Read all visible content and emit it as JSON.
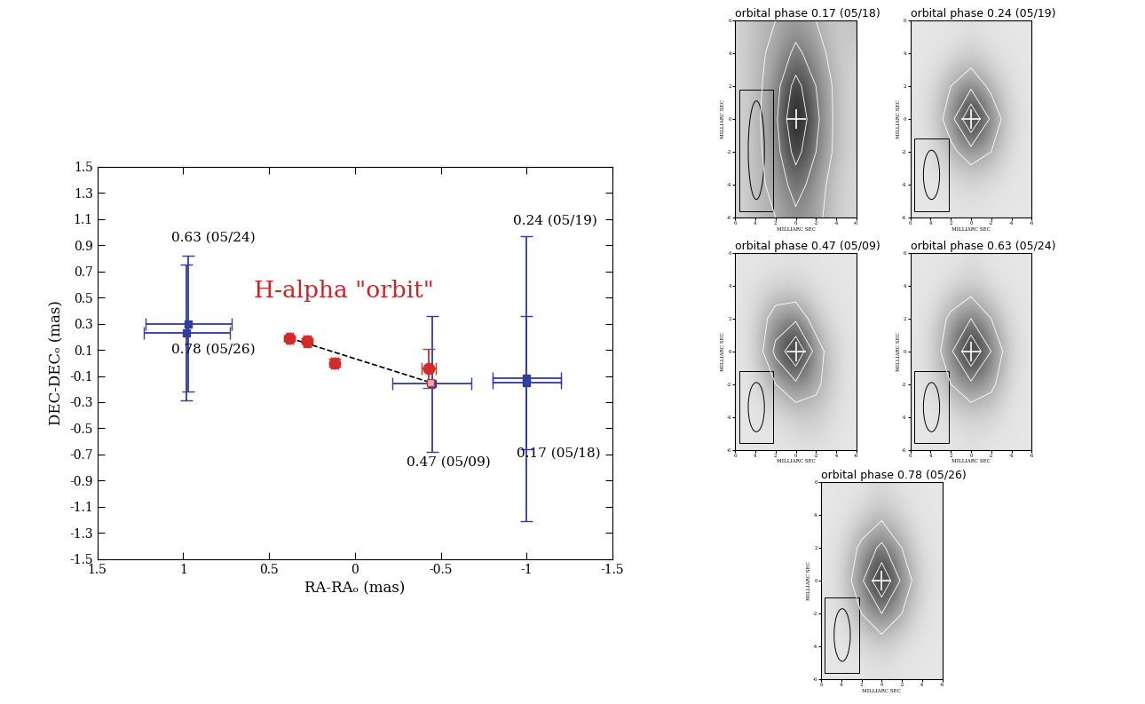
{
  "chart_data": [
    {
      "type": "scatter",
      "xlabel": "RA-RAₒ (mas)",
      "ylabel": "DEC-DECₒ (mas)",
      "xlim": [
        1.5,
        -1.5
      ],
      "ylim": [
        -1.5,
        1.5
      ],
      "xticks": [
        1.5,
        1,
        0.5,
        0,
        -0.5,
        -1,
        -1.5
      ],
      "yticks": [
        -1.5,
        -1.3,
        -1.1,
        -0.9,
        -0.7,
        -0.5,
        -0.3,
        -0.1,
        0.1,
        0.3,
        0.5,
        0.7,
        0.9,
        1.1,
        1.3,
        1.5
      ],
      "series": [
        {
          "type": "scatter",
          "color": "#2f3d9c",
          "marker": "square",
          "line_style": "none",
          "x": [
            0.97,
            0.98,
            -0.45,
            -1.0,
            -1.0
          ],
          "y": [
            0.3,
            0.23,
            -0.16,
            -0.12,
            -0.15
          ],
          "xerr": [
            0.25,
            0.25,
            0.23,
            0.2,
            0.2
          ],
          "yerr": [
            0.52,
            0.52,
            0.52,
            1.09,
            0.51
          ]
        },
        {
          "type": "line",
          "color": "#000000",
          "marker": "none",
          "line_style": "dashed",
          "x": [
            0.38,
            -0.44
          ],
          "y": [
            0.19,
            -0.15
          ]
        },
        {
          "type": "scatter",
          "color": "#d42a2a",
          "marker": "square",
          "line_style": "none",
          "x": [
            0.38,
            0.28,
            0.12,
            -0.44
          ],
          "y": [
            0.19,
            0.15,
            -0.01,
            -0.15
          ]
        },
        {
          "type": "scatter",
          "color": "#d42a2a",
          "marker": "circle",
          "line_style": "none",
          "x": [
            0.38,
            0.28,
            0.12,
            -0.43
          ],
          "y": [
            0.19,
            0.17,
            0.0,
            -0.04
          ],
          "xerr": [
            0.02,
            0.02,
            0.02,
            0.04
          ],
          "yerr": [
            0.02,
            0.02,
            0.03,
            0.15
          ]
        }
      ],
      "annotations": [
        {
          "text": "0.63 (05/24)",
          "x": 1.07,
          "y": 0.96,
          "color": "#000000"
        },
        {
          "text": "0.78 (05/26)",
          "x": 1.07,
          "y": 0.1,
          "color": "#000000"
        },
        {
          "text": "0.47 (05/09)",
          "x": -0.3,
          "y": -0.76,
          "color": "#000000"
        },
        {
          "text": "0.24 (05/19)",
          "x": -0.92,
          "y": 1.09,
          "color": "#000000"
        },
        {
          "text": "0.17 (05/18)",
          "x": -0.94,
          "y": -0.69,
          "color": "#000000"
        },
        {
          "text": "H-alpha \"orbit\"",
          "x": 0.59,
          "y": 0.55,
          "color": "#c8262a"
        }
      ]
    },
    {
      "type": "image",
      "title": "orbital phase 0.17 (05/18)",
      "xlabel": "MILLIARC SEC",
      "ylabel": "MILLIARC SEC",
      "xlim": [
        6,
        -6
      ],
      "ylim": [
        -6,
        6
      ],
      "xticks": [
        6,
        4,
        2,
        0,
        -2,
        -4,
        -6
      ],
      "yticks": [
        -6,
        -4,
        -2,
        0,
        2,
        4,
        6
      ],
      "clim": [
        0,
        1
      ],
      "contour_levels": [
        0.3,
        0.5,
        0.75
      ],
      "cell_x": [
        6,
        4,
        2,
        0,
        -2,
        -4,
        -6
      ],
      "cell_y": [
        -6,
        -4,
        -2,
        0,
        2,
        4,
        6
      ],
      "cells": [
        [
          0.15,
          0.25,
          0.3,
          0.45,
          0.35,
          0.2,
          0.15
        ],
        [
          0.15,
          0.25,
          0.35,
          0.6,
          0.4,
          0.2,
          0.15
        ],
        [
          0.15,
          0.25,
          0.4,
          0.85,
          0.5,
          0.25,
          0.15
        ],
        [
          0.15,
          0.25,
          0.45,
          1.0,
          0.55,
          0.25,
          0.15
        ],
        [
          0.15,
          0.25,
          0.4,
          0.85,
          0.5,
          0.25,
          0.15
        ],
        [
          0.15,
          0.25,
          0.35,
          0.55,
          0.4,
          0.2,
          0.2
        ],
        [
          0.15,
          0.25,
          0.3,
          0.4,
          0.3,
          0.2,
          0.25
        ]
      ],
      "beam": {
        "width": 1.6,
        "height": 6.0
      },
      "cross": [
        0,
        0
      ]
    },
    {
      "type": "image",
      "title": "orbital phase 0.24 (05/19)",
      "xlabel": "MILLIARC SEC",
      "ylabel": "MILLIARC SEC",
      "xlim": [
        6,
        -6
      ],
      "ylim": [
        -6,
        6
      ],
      "xticks": [
        6,
        4,
        2,
        0,
        -2,
        -4,
        -6
      ],
      "yticks": [
        -6,
        -4,
        -2,
        0,
        2,
        4,
        6
      ],
      "clim": [
        0,
        1
      ],
      "contour_levels": [
        0.3,
        0.5,
        0.75
      ],
      "cell_x": [
        6,
        4,
        2,
        0,
        -2,
        -4,
        -6
      ],
      "cell_y": [
        -6,
        -4,
        -2,
        0,
        2,
        4,
        6
      ],
      "cells": [
        [
          0.1,
          0.1,
          0.1,
          0.12,
          0.1,
          0.1,
          0.1
        ],
        [
          0.1,
          0.1,
          0.12,
          0.15,
          0.12,
          0.1,
          0.1
        ],
        [
          0.1,
          0.12,
          0.25,
          0.4,
          0.3,
          0.12,
          0.1
        ],
        [
          0.1,
          0.15,
          0.4,
          1.0,
          0.45,
          0.15,
          0.1
        ],
        [
          0.1,
          0.12,
          0.3,
          0.45,
          0.25,
          0.12,
          0.1
        ],
        [
          0.1,
          0.1,
          0.12,
          0.18,
          0.12,
          0.1,
          0.1
        ],
        [
          0.1,
          0.1,
          0.1,
          0.12,
          0.1,
          0.1,
          0.1
        ]
      ],
      "beam": {
        "width": 1.6,
        "height": 3.0
      },
      "cross": [
        0,
        0
      ]
    },
    {
      "type": "image",
      "title": "orbital phase 0.47 (05/09)",
      "xlabel": "MILLIARC SEC",
      "ylabel": "MILLIARC SEC",
      "xlim": [
        6,
        -6
      ],
      "ylim": [
        -6,
        6
      ],
      "xticks": [
        6,
        4,
        2,
        0,
        -2,
        -4,
        -6
      ],
      "yticks": [
        -6,
        -4,
        -2,
        0,
        2,
        4,
        6
      ],
      "clim": [
        0,
        1
      ],
      "contour_levels": [
        0.3,
        0.5,
        0.75
      ],
      "cell_x": [
        6,
        4,
        2,
        0,
        -2,
        -4,
        -6
      ],
      "cell_y": [
        -6,
        -4,
        -2,
        0,
        2,
        4,
        6
      ],
      "cells": [
        [
          0.1,
          0.1,
          0.1,
          0.12,
          0.12,
          0.1,
          0.1
        ],
        [
          0.1,
          0.1,
          0.12,
          0.18,
          0.2,
          0.12,
          0.1
        ],
        [
          0.1,
          0.12,
          0.3,
          0.45,
          0.35,
          0.15,
          0.1
        ],
        [
          0.1,
          0.15,
          0.55,
          1.0,
          0.4,
          0.15,
          0.1
        ],
        [
          0.1,
          0.15,
          0.4,
          0.45,
          0.2,
          0.12,
          0.1
        ],
        [
          0.1,
          0.12,
          0.15,
          0.15,
          0.12,
          0.1,
          0.1
        ],
        [
          0.1,
          0.1,
          0.1,
          0.12,
          0.1,
          0.1,
          0.1
        ]
      ],
      "beam": {
        "width": 1.6,
        "height": 3.0
      },
      "cross": [
        0,
        0
      ]
    },
    {
      "type": "image",
      "title": "orbital phase 0.63 (05/24)",
      "xlabel": "MILLIARC SEC",
      "ylabel": "MILLIARC SEC",
      "xlim": [
        6,
        -6
      ],
      "ylim": [
        -6,
        6
      ],
      "xticks": [
        6,
        4,
        2,
        0,
        -2,
        -4,
        -6
      ],
      "yticks": [
        -6,
        -4,
        -2,
        0,
        2,
        4,
        6
      ],
      "clim": [
        0,
        1
      ],
      "contour_levels": [
        0.3,
        0.5,
        0.75
      ],
      "cell_x": [
        6,
        4,
        2,
        0,
        -2,
        -4,
        -6
      ],
      "cell_y": [
        -6,
        -4,
        -2,
        0,
        2,
        4,
        6
      ],
      "cells": [
        [
          0.1,
          0.1,
          0.1,
          0.12,
          0.1,
          0.1,
          0.1
        ],
        [
          0.1,
          0.1,
          0.12,
          0.18,
          0.15,
          0.1,
          0.1
        ],
        [
          0.1,
          0.12,
          0.3,
          0.45,
          0.35,
          0.12,
          0.1
        ],
        [
          0.1,
          0.15,
          0.45,
          1.0,
          0.5,
          0.15,
          0.1
        ],
        [
          0.1,
          0.12,
          0.35,
          0.5,
          0.3,
          0.12,
          0.1
        ],
        [
          0.1,
          0.1,
          0.12,
          0.2,
          0.12,
          0.1,
          0.1
        ],
        [
          0.1,
          0.1,
          0.1,
          0.12,
          0.1,
          0.1,
          0.1
        ]
      ],
      "beam": {
        "width": 1.6,
        "height": 3.0
      },
      "cross": [
        0,
        0
      ]
    },
    {
      "type": "image",
      "title": "orbital phase 0.78 (05/26)",
      "xlabel": "MILLIARC SEC",
      "ylabel": "MILLIARC SEC",
      "xlim": [
        6,
        -6
      ],
      "ylim": [
        -6,
        6
      ],
      "xticks": [
        6,
        4,
        2,
        0,
        -2,
        -4,
        -6
      ],
      "yticks": [
        -6,
        -4,
        -2,
        0,
        2,
        4,
        6
      ],
      "clim": [
        0,
        1
      ],
      "contour_levels": [
        0.3,
        0.5,
        0.75
      ],
      "cell_x": [
        6,
        4,
        2,
        0,
        -2,
        -4,
        -6
      ],
      "cell_y": [
        -6,
        -4,
        -2,
        0,
        2,
        4,
        6
      ],
      "cells": [
        [
          0.1,
          0.1,
          0.1,
          0.12,
          0.1,
          0.1,
          0.1
        ],
        [
          0.1,
          0.1,
          0.12,
          0.18,
          0.12,
          0.1,
          0.1
        ],
        [
          0.1,
          0.12,
          0.3,
          0.5,
          0.3,
          0.12,
          0.1
        ],
        [
          0.1,
          0.15,
          0.45,
          1.0,
          0.45,
          0.15,
          0.1
        ],
        [
          0.1,
          0.12,
          0.35,
          0.55,
          0.3,
          0.12,
          0.1
        ],
        [
          0.1,
          0.1,
          0.15,
          0.25,
          0.15,
          0.1,
          0.1
        ],
        [
          0.1,
          0.1,
          0.1,
          0.15,
          0.1,
          0.1,
          0.1
        ]
      ],
      "beam": {
        "width": 1.6,
        "height": 3.2
      },
      "cross": [
        0,
        0
      ]
    }
  ]
}
